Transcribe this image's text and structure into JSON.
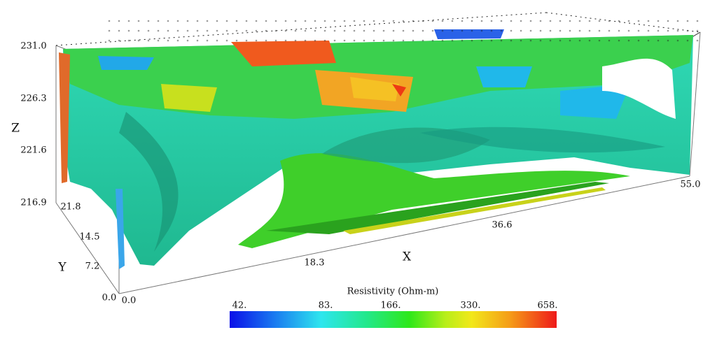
{
  "figure": {
    "z_axis": {
      "title": "Z",
      "ticks": [
        "231.0",
        "226.3",
        "221.6",
        "216.9"
      ]
    },
    "y_axis": {
      "title": "Y",
      "ticks": [
        "21.8",
        "14.5",
        "7.2",
        "0.0"
      ]
    },
    "x_axis": {
      "title": "X",
      "ticks": [
        "0.0",
        "18.3",
        "36.6",
        "55.0"
      ]
    },
    "colorbar": {
      "title": "Resistivity (Ohm-m)",
      "ticks": [
        "42.",
        "83.",
        "166.",
        "330.",
        "658."
      ]
    }
  }
}
